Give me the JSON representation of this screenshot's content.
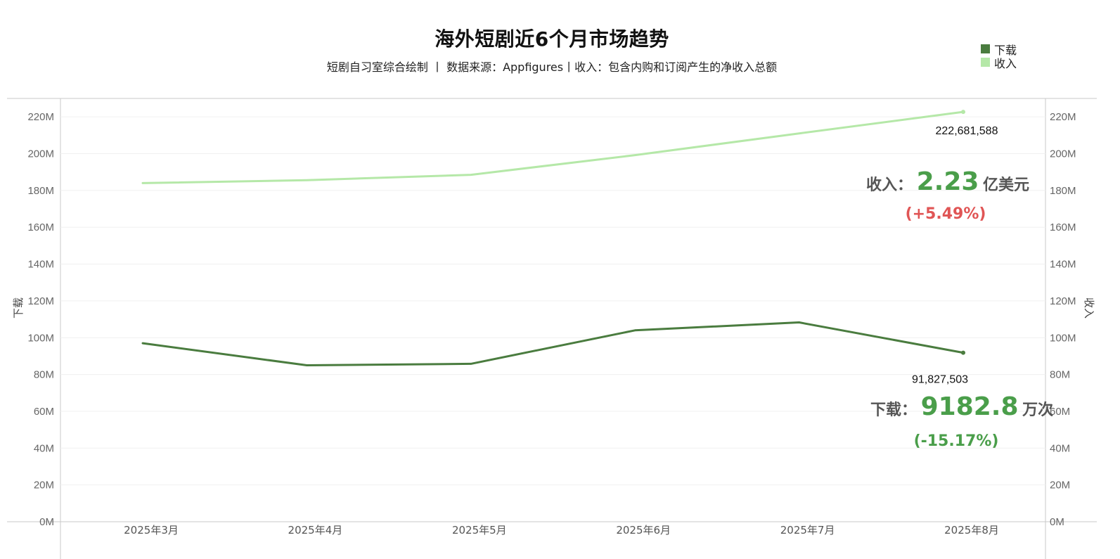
{
  "title": "海外短剧近6个月市场趋势",
  "subtitle": "短剧自习室综合绘制 丨 数据来源：Appfigures丨收入：包含内购和订阅产生的净收入总额",
  "legend": [
    {
      "label": "下载",
      "color": "#4a7c3f"
    },
    {
      "label": "收入",
      "color": "#b5e8a8"
    }
  ],
  "kpis": {
    "revenue": {
      "label": "收入：",
      "value": "2.23",
      "unit": "亿美元",
      "change": "(+5.49%)",
      "change_color": "#e05555"
    },
    "downloads": {
      "label": "下载：",
      "value": "9182.8",
      "unit": "万次",
      "change": "(-15.17%)",
      "change_color": "#4a9e4a"
    }
  },
  "chart_data": {
    "type": "line",
    "categories": [
      "2025年3月",
      "2025年4月",
      "2025年5月",
      "2025年6月",
      "2025年7月",
      "2025年8月"
    ],
    "series": [
      {
        "name": "下载",
        "axis": "left",
        "color": "#4a7c3f",
        "values": [
          97000000,
          85000000,
          85800000,
          104000000,
          108300000,
          91827503
        ]
      },
      {
        "name": "收入",
        "axis": "right",
        "color": "#b5e8a8",
        "values": [
          184000000,
          185600000,
          188500000,
          199200000,
          211000000,
          222681588
        ]
      }
    ],
    "ylabel_left": "下载",
    "ylabel_right": "收入",
    "ylim": [
      0,
      230000000
    ],
    "yticks": [
      "0M",
      "20M",
      "40M",
      "60M",
      "80M",
      "100M",
      "120M",
      "140M",
      "160M",
      "180M",
      "200M",
      "220M"
    ],
    "point_labels": {
      "downloads_last": "91,827,503",
      "revenue_last": "222,681,588"
    },
    "grid": true
  }
}
